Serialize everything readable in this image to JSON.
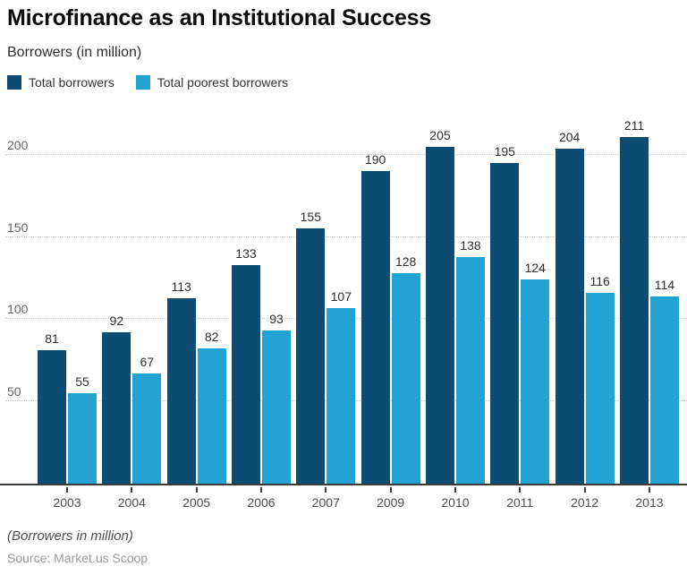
{
  "header": {
    "title": "Microfinance as an Institutional Success",
    "subtitle": "Borrowers (in million)"
  },
  "chart_data": {
    "type": "bar",
    "title": "Microfinance as an Institutional Success",
    "ylabel": "Borrowers (in million)",
    "categories": [
      "2003",
      "2004",
      "2005",
      "2006",
      "2007",
      "2009",
      "2010",
      "2011",
      "2012",
      "2013"
    ],
    "series": [
      {
        "name": "Total borrowers",
        "color": "#0d4d73",
        "values": [
          81,
          92,
          113,
          133,
          155,
          190,
          205,
          195,
          204,
          211
        ]
      },
      {
        "name": "Total poorest borrowers",
        "color": "#22a3d4",
        "values": [
          55,
          67,
          82,
          93,
          107,
          128,
          138,
          124,
          116,
          114
        ]
      }
    ],
    "yticks": [
      50,
      100,
      150,
      200
    ],
    "ylim": [
      0,
      219
    ],
    "grid": "horizontal-dotted",
    "legend_position": "top-left",
    "bar_labels": true
  },
  "footer": {
    "note": "(Borrowers in million)",
    "source": "Source: Market.us Scoop"
  },
  "colors": {
    "background": "#ffffff",
    "axis_line": "#3c3c3c",
    "gridline": "#c8c8c8",
    "total_borrowers": "#0d4d73",
    "total_poorest_borrowers": "#22a3d4"
  }
}
